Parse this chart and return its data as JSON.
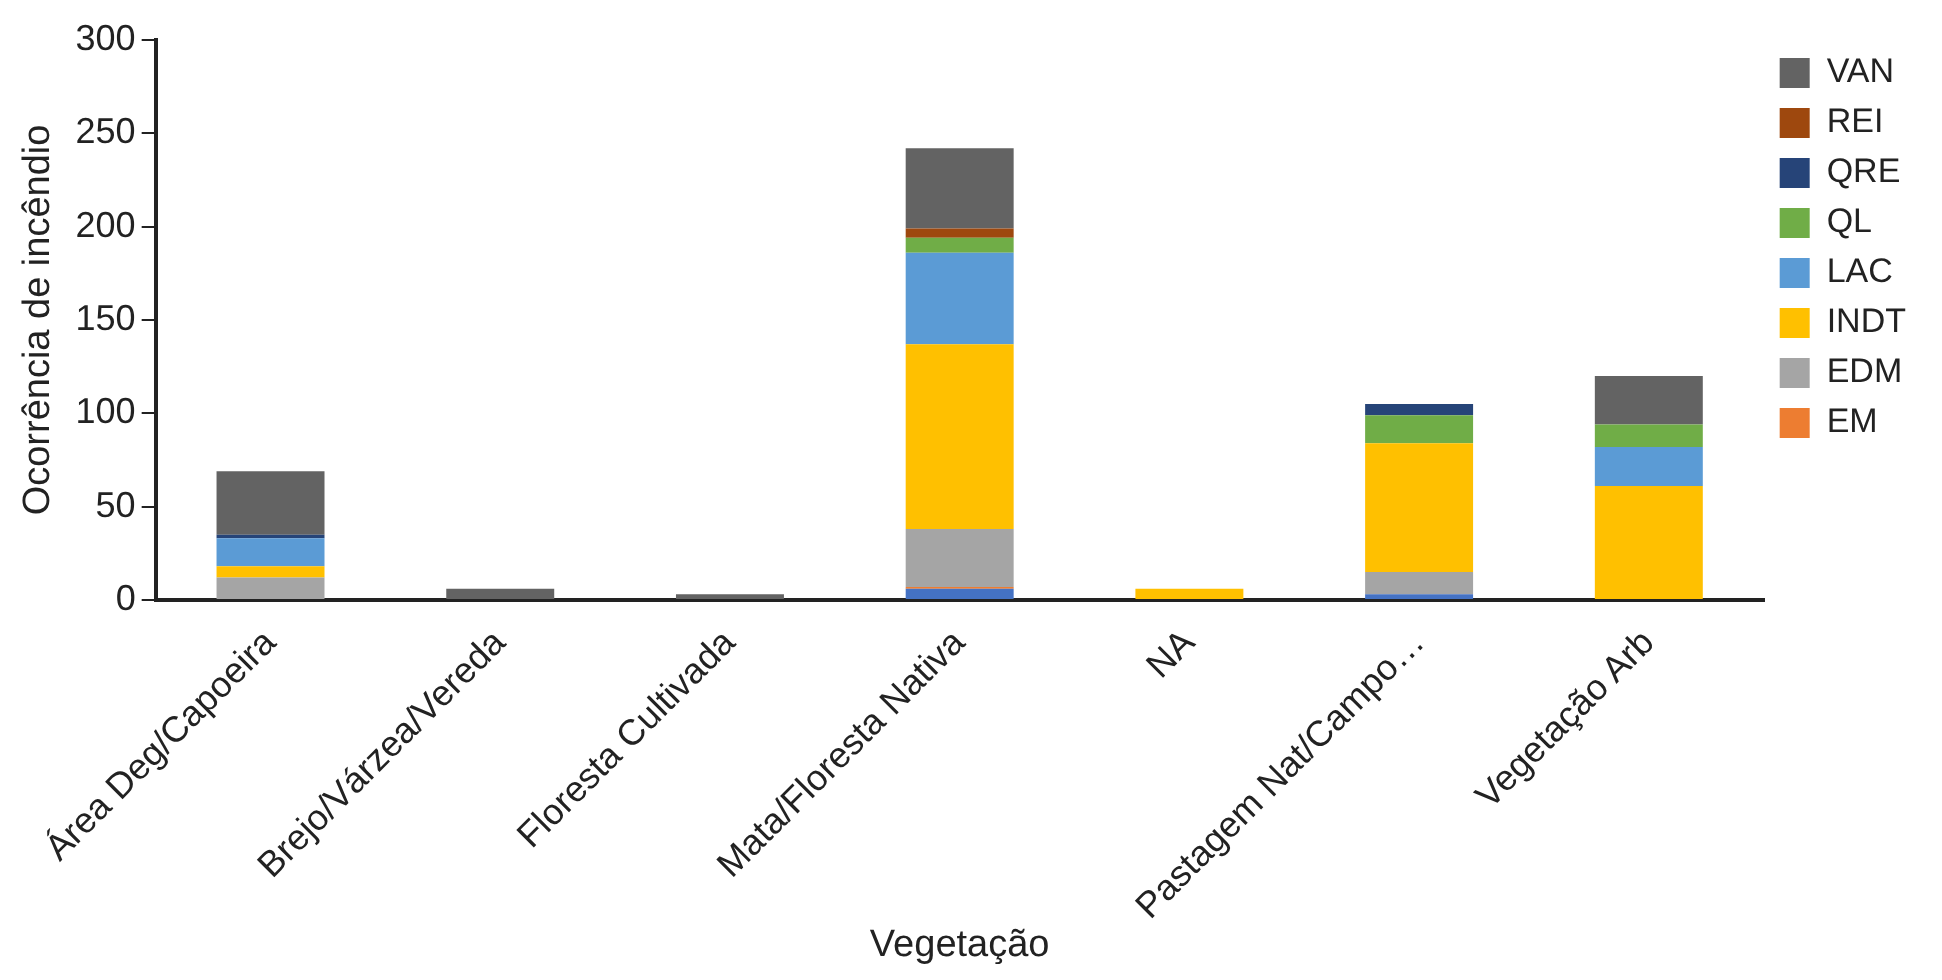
{
  "chart_data": {
    "type": "bar",
    "stacked": true,
    "xlabel": "Vegetação",
    "ylabel": "Ocorrência de incêndio",
    "categories": [
      "Área Deg/Capoeira",
      "Brejo/Várzea/Vereda",
      "Floresta Cultivada",
      "Mata/Floresta Nativa",
      "NA",
      "Pastagem Nat/Campo…",
      "Vegetação Arb"
    ],
    "series": [
      {
        "color": "#4472c4",
        "values": [
          0,
          0,
          0,
          6,
          0,
          3,
          0
        ]
      },
      {
        "name": "EM",
        "color": "#ed7d31",
        "values": [
          0,
          0,
          0,
          1,
          0,
          0,
          0
        ]
      },
      {
        "name": "EDM",
        "color": "#a5a5a5",
        "values": [
          12,
          0,
          0,
          31,
          0,
          12,
          0
        ]
      },
      {
        "name": "INDT",
        "color": "#ffc000",
        "values": [
          6,
          0,
          0,
          99,
          6,
          69,
          61
        ]
      },
      {
        "name": "LAC",
        "color": "#5b9bd5",
        "values": [
          15,
          0,
          0,
          49,
          0,
          0,
          21
        ]
      },
      {
        "name": "QL",
        "color": "#70ad47",
        "values": [
          0,
          0,
          0,
          8,
          0,
          15,
          12
        ]
      },
      {
        "name": "QRE",
        "color": "#264478",
        "values": [
          2,
          0,
          0,
          0,
          0,
          6,
          0
        ]
      },
      {
        "name": "REI",
        "color": "#9e480e",
        "values": [
          0,
          0,
          0,
          5,
          0,
          0,
          0
        ]
      },
      {
        "name": "VAN",
        "color": "#636363",
        "values": [
          34,
          6,
          3,
          43,
          0,
          0,
          26
        ]
      }
    ],
    "ylim": [
      0,
      300
    ],
    "yticks": [
      0,
      50,
      100,
      150,
      200,
      250,
      300
    ],
    "grid": false,
    "legend": "right"
  }
}
